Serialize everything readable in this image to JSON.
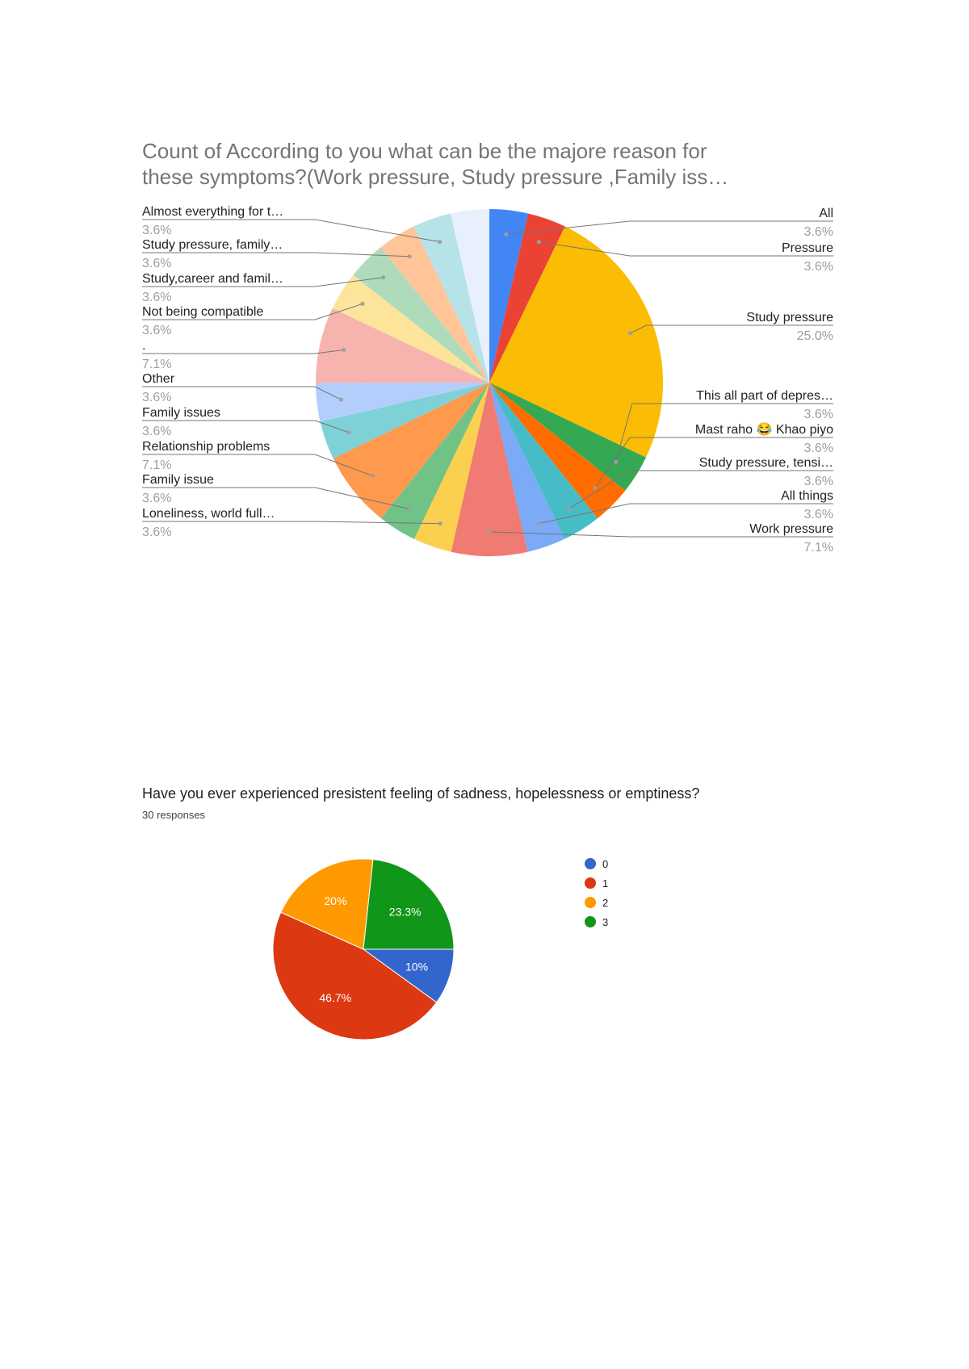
{
  "chart_data": [
    {
      "type": "pie",
      "title_lines": [
        "Count of According to you what can be the majore reason for",
        "these symptoms?(Work pressure, Study pressure ,Family iss…"
      ],
      "slices": [
        {
          "label": "All",
          "value": 3.6,
          "pct": "3.6%",
          "color": "#4285f4"
        },
        {
          "label": "Pressure",
          "value": 3.6,
          "pct": "3.6%",
          "color": "#ea4335"
        },
        {
          "label": "Study pressure",
          "value": 25.0,
          "pct": "25.0%",
          "color": "#fbbc04"
        },
        {
          "label": "This all part of depres…",
          "value": 3.6,
          "pct": "3.6%",
          "color": "#34a853"
        },
        {
          "label": "Mast raho 😂 Khao piyo",
          "value": 3.6,
          "pct": "3.6%",
          "color": "#ff6d01"
        },
        {
          "label": "Study pressure, tensi…",
          "value": 3.6,
          "pct": "3.6%",
          "color": "#46bdc6"
        },
        {
          "label": "All things",
          "value": 3.6,
          "pct": "3.6%",
          "color": "#7baaf7"
        },
        {
          "label": "Work pressure",
          "value": 7.1,
          "pct": "7.1%",
          "color": "#f07b72"
        },
        {
          "label": "Loneliness, world full…",
          "value": 3.6,
          "pct": "3.6%",
          "color": "#fcd04f"
        },
        {
          "label": "Family issue",
          "value": 3.6,
          "pct": "3.6%",
          "color": "#71c287"
        },
        {
          "label": "Relationship problems",
          "value": 7.1,
          "pct": "7.1%",
          "color": "#ff994d"
        },
        {
          "label": "Family issues",
          "value": 3.6,
          "pct": "3.6%",
          "color": "#7ed1d7"
        },
        {
          "label": "Other",
          "value": 3.6,
          "pct": "3.6%",
          "color": "#b3cefb"
        },
        {
          "label": ".",
          "value": 7.1,
          "pct": "7.1%",
          "color": "#f7b4ae"
        },
        {
          "label": "Not being compatible",
          "value": 3.6,
          "pct": "3.6%",
          "color": "#fde49b"
        },
        {
          "label": "Study,career and famil…",
          "value": 3.6,
          "pct": "3.6%",
          "color": "#aedcba"
        },
        {
          "label": "Study pressure, family…",
          "value": 3.6,
          "pct": "3.6%",
          "color": "#ffc599"
        },
        {
          "label": "Almost everything for t…",
          "value": 3.6,
          "pct": "3.6%",
          "color": "#b5e3e8"
        },
        {
          "label": "",
          "value": 3.6,
          "pct": "",
          "color": "#e8f0fe"
        }
      ]
    },
    {
      "type": "pie",
      "title": "Have you ever experienced presistent feeling of sadness, hopelessness or emptiness?",
      "subtitle": "30 responses",
      "slices": [
        {
          "label": "0",
          "value": 10,
          "pct": "10%",
          "color": "#3366cc"
        },
        {
          "label": "1",
          "value": 46.7,
          "pct": "46.7%",
          "color": "#dc3912"
        },
        {
          "label": "2",
          "value": 20,
          "pct": "20%",
          "color": "#ff9900"
        },
        {
          "label": "3",
          "value": 23.3,
          "pct": "23.3%",
          "color": "#109618"
        }
      ]
    }
  ]
}
